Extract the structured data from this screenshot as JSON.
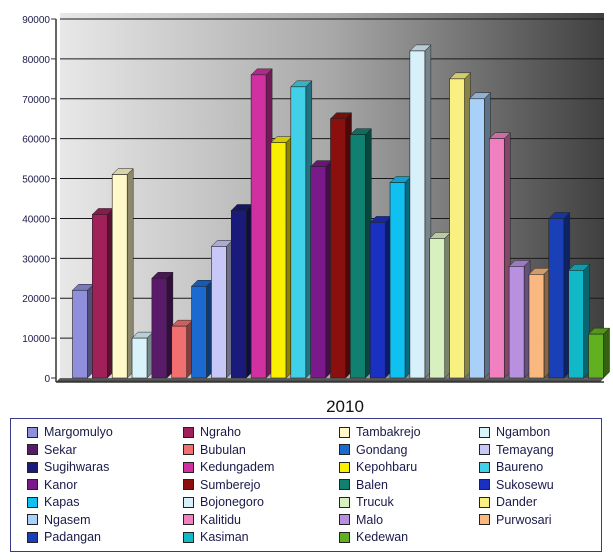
{
  "chart_data": {
    "type": "bar",
    "xlabel": "2010",
    "ylim": [
      0,
      90000
    ],
    "yticks": [
      0,
      10000,
      20000,
      30000,
      40000,
      50000,
      60000,
      70000,
      80000,
      90000
    ],
    "ytick_labels": [
      "0",
      "10000",
      "20000",
      "30000",
      "40000",
      "50000",
      "60000",
      "70000",
      "80000",
      "90000"
    ],
    "grid": true,
    "legend_position": "bottom",
    "series": [
      {
        "name": "Margomulyo",
        "value": 22000,
        "color": "#8f8fdc"
      },
      {
        "name": "Ngraho",
        "value": 41000,
        "color": "#a0205a"
      },
      {
        "name": "Tambakrejo",
        "value": 51000,
        "color": "#fff8c8"
      },
      {
        "name": "Ngambon",
        "value": 10000,
        "color": "#d8f4fa"
      },
      {
        "name": "Sekar",
        "value": 25000,
        "color": "#5a1a6a"
      },
      {
        "name": "Bubulan",
        "value": 13000,
        "color": "#f07070"
      },
      {
        "name": "Gondang",
        "value": 23000,
        "color": "#1a6ad0"
      },
      {
        "name": "Temayang",
        "value": 33000,
        "color": "#c8c8f8"
      },
      {
        "name": "Sugihwaras",
        "value": 42000,
        "color": "#1a1a7a"
      },
      {
        "name": "Kedungadem",
        "value": 76000,
        "color": "#d030a0"
      },
      {
        "name": "Kepohbaru",
        "value": 59000,
        "color": "#f8f000"
      },
      {
        "name": "Baureno",
        "value": 73000,
        "color": "#40d0e8"
      },
      {
        "name": "Kanor",
        "value": 53000,
        "color": "#7a1a8a"
      },
      {
        "name": "Sumberejo",
        "value": 65000,
        "color": "#8a1010"
      },
      {
        "name": "Balen",
        "value": 61000,
        "color": "#108070"
      },
      {
        "name": "Sukosewu",
        "value": 39000,
        "color": "#1a30c0"
      },
      {
        "name": "Kapas",
        "value": 49000,
        "color": "#10c0f0"
      },
      {
        "name": "Bojonegoro",
        "value": 82000,
        "color": "#d8f0fa"
      },
      {
        "name": "Trucuk",
        "value": 35000,
        "color": "#d8f0c0"
      },
      {
        "name": "Dander",
        "value": 75000,
        "color": "#f8f080"
      },
      {
        "name": "Ngasem",
        "value": 70000,
        "color": "#a8d0f8"
      },
      {
        "name": "Kalitidu",
        "value": 60000,
        "color": "#f080c0"
      },
      {
        "name": "Malo",
        "value": 28000,
        "color": "#b890e0"
      },
      {
        "name": "Purwosari",
        "value": 26000,
        "color": "#f8b880"
      },
      {
        "name": "Padangan",
        "value": 40000,
        "color": "#1a40b8"
      },
      {
        "name": "Kasiman",
        "value": 27000,
        "color": "#10b8c8"
      },
      {
        "name": "Kedewan",
        "value": 11000,
        "color": "#60b020"
      }
    ],
    "legend_rows": [
      [
        "Margomulyo",
        "Ngraho",
        "Tambakrejo",
        "Ngambon"
      ],
      [
        "Sekar",
        "Bubulan",
        "Gondang",
        "Temayang"
      ],
      [
        "Sugihwaras",
        "Kedungadem",
        "Kepohbaru",
        "Baureno"
      ],
      [
        "Kanor",
        "Sumberejo",
        "Balen",
        "Sukosewu"
      ],
      [
        "Kapas",
        "Bojonegoro",
        "Trucuk",
        "Dander"
      ],
      [
        "Ngasem",
        "Kalitidu",
        "Malo",
        "Purwosari"
      ],
      [
        "Padangan",
        "Kasiman",
        "Kedewan"
      ]
    ]
  }
}
